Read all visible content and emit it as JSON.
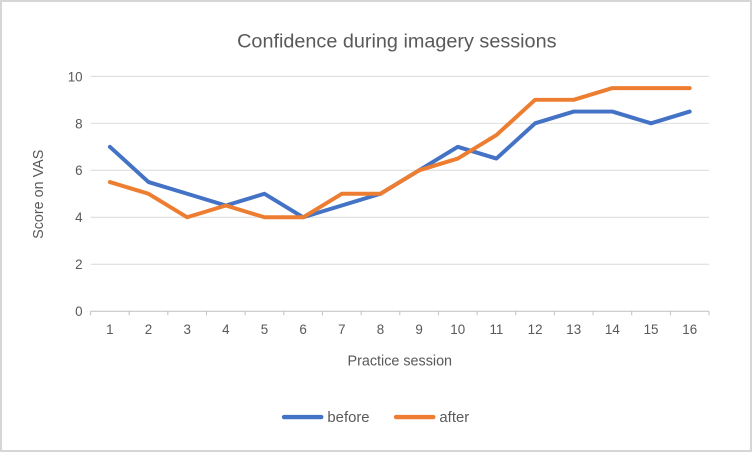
{
  "chart_data": {
    "type": "line",
    "title": "Confidence during imagery sessions",
    "xlabel": "Practice session",
    "ylabel": "Score on VAS",
    "categories": [
      "1",
      "2",
      "3",
      "4",
      "5",
      "6",
      "7",
      "8",
      "9",
      "10",
      "11",
      "12",
      "13",
      "14",
      "15",
      "16"
    ],
    "yticks": [
      0,
      2,
      4,
      6,
      8,
      10
    ],
    "ylim": [
      0,
      10
    ],
    "grid": true,
    "legend_position": "bottom",
    "series": [
      {
        "name": "before",
        "color": "#4472C4",
        "values": [
          7,
          5.5,
          5,
          4.5,
          5,
          4,
          4.5,
          5,
          6,
          7,
          6.5,
          8,
          8.5,
          8.5,
          8,
          8.5
        ]
      },
      {
        "name": "after",
        "color": "#ED7D31",
        "values": [
          5.5,
          5,
          4,
          4.5,
          4,
          4,
          5,
          5,
          6,
          6.5,
          7.5,
          9,
          9,
          9.5,
          9.5,
          9.5
        ]
      }
    ]
  },
  "colors": {
    "gridline": "#D9D9D9",
    "axis_line": "#BFBFBF",
    "text": "#595959",
    "frame_border": "#D6D6D6",
    "background": "#FFFFFF"
  }
}
